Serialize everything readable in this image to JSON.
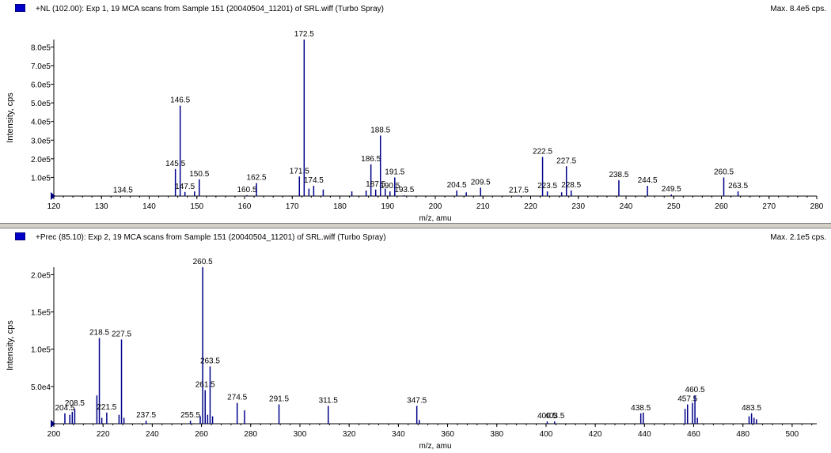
{
  "colors": {
    "peak": "#00008b",
    "axis": "#000000",
    "marker": "#000080"
  },
  "chart_data": [
    {
      "type": "bar",
      "title": "+NL (102.00): Exp 1, 19 MCA scans from Sample 151 (20040504_11201) of SRL.wiff (Turbo Spray)",
      "max_label": "Max. 8.4e5 cps.",
      "xlabel": "m/z, amu",
      "ylabel": "Intensity, cps",
      "xlim": [
        120,
        280
      ],
      "ylim": [
        0,
        840000
      ],
      "xticks": [
        120,
        130,
        140,
        150,
        160,
        170,
        180,
        190,
        200,
        210,
        220,
        230,
        240,
        250,
        260,
        270,
        280
      ],
      "yticks": [
        {
          "value": 100000,
          "label": "1.0e5"
        },
        {
          "value": 200000,
          "label": "2.0e5"
        },
        {
          "value": 300000,
          "label": "3.0e5"
        },
        {
          "value": 400000,
          "label": "4.0e5"
        },
        {
          "value": 500000,
          "label": "5.0e5"
        },
        {
          "value": 600000,
          "label": "6.0e5"
        },
        {
          "value": 700000,
          "label": "7.0e5"
        },
        {
          "value": 800000,
          "label": "8.0e5"
        }
      ],
      "peaks": [
        {
          "x": 134.5,
          "y": 2000,
          "label": "134.5"
        },
        {
          "x": 145.5,
          "y": 145000,
          "label": "145.5"
        },
        {
          "x": 146.5,
          "y": 485000,
          "label": "146.5"
        },
        {
          "x": 147.5,
          "y": 22000,
          "label": "147.5"
        },
        {
          "x": 149.5,
          "y": 25000
        },
        {
          "x": 150.5,
          "y": 90000,
          "label": "150.5"
        },
        {
          "x": 160.5,
          "y": 5000,
          "label": "160.5"
        },
        {
          "x": 162.5,
          "y": 70000,
          "label": "162.5"
        },
        {
          "x": 171.5,
          "y": 105000,
          "label": "171.5"
        },
        {
          "x": 172.5,
          "y": 840000,
          "label": "172.5"
        },
        {
          "x": 173.5,
          "y": 40000
        },
        {
          "x": 174.5,
          "y": 55000,
          "label": "174.5"
        },
        {
          "x": 176.5,
          "y": 35000
        },
        {
          "x": 182.5,
          "y": 25000
        },
        {
          "x": 185.5,
          "y": 30000
        },
        {
          "x": 186.5,
          "y": 170000,
          "label": "186.5"
        },
        {
          "x": 187.5,
          "y": 35000,
          "label": "187.5"
        },
        {
          "x": 188.5,
          "y": 325000,
          "label": "188.5"
        },
        {
          "x": 189.5,
          "y": 40000
        },
        {
          "x": 190.5,
          "y": 25000,
          "label": "190.5"
        },
        {
          "x": 191.5,
          "y": 100000,
          "label": "191.5"
        },
        {
          "x": 193.5,
          "y": 4000,
          "label": "193.5"
        },
        {
          "x": 204.5,
          "y": 30000,
          "label": "204.5"
        },
        {
          "x": 206.5,
          "y": 20000
        },
        {
          "x": 209.5,
          "y": 45000,
          "label": "209.5"
        },
        {
          "x": 217.5,
          "y": 3000,
          "label": "217.5"
        },
        {
          "x": 222.5,
          "y": 210000,
          "label": "222.5"
        },
        {
          "x": 223.5,
          "y": 25000,
          "label": "223.5"
        },
        {
          "x": 226.5,
          "y": 20000
        },
        {
          "x": 227.5,
          "y": 160000,
          "label": "227.5"
        },
        {
          "x": 228.5,
          "y": 30000,
          "label": "228.5"
        },
        {
          "x": 238.5,
          "y": 85000,
          "label": "238.5"
        },
        {
          "x": 244.5,
          "y": 55000,
          "label": "244.5"
        },
        {
          "x": 249.5,
          "y": 8000,
          "label": "249.5"
        },
        {
          "x": 260.5,
          "y": 100000,
          "label": "260.5"
        },
        {
          "x": 263.5,
          "y": 25000,
          "label": "263.5"
        }
      ]
    },
    {
      "type": "bar",
      "title": "+Prec (85.10): Exp 2, 19 MCA scans from Sample 151 (20040504_11201) of SRL.wiff (Turbo Spray)",
      "max_label": "Max. 2.1e5 cps.",
      "xlabel": "m/z, amu",
      "ylabel": "Intensity, cps",
      "xlim": [
        200,
        510
      ],
      "ylim": [
        0,
        210000
      ],
      "xticks": [
        200,
        220,
        240,
        260,
        280,
        300,
        320,
        340,
        360,
        380,
        400,
        420,
        440,
        460,
        480,
        500
      ],
      "yticks": [
        {
          "value": 50000,
          "label": "5.0e4"
        },
        {
          "value": 100000,
          "label": "1.0e5"
        },
        {
          "value": 150000,
          "label": "1.5e5"
        },
        {
          "value": 200000,
          "label": "2.0e5"
        }
      ],
      "peaks": [
        {
          "x": 204.5,
          "y": 14000,
          "label": "204.5"
        },
        {
          "x": 206.5,
          "y": 12000
        },
        {
          "x": 207.5,
          "y": 16000
        },
        {
          "x": 208.5,
          "y": 20000,
          "label": "208.5"
        },
        {
          "x": 217.5,
          "y": 38000
        },
        {
          "x": 218.5,
          "y": 115000,
          "label": "218.5"
        },
        {
          "x": 219.5,
          "y": 8000
        },
        {
          "x": 221.5,
          "y": 15000,
          "label": "221.5"
        },
        {
          "x": 226.5,
          "y": 12000
        },
        {
          "x": 227.5,
          "y": 113000,
          "label": "227.5"
        },
        {
          "x": 228.5,
          "y": 8000
        },
        {
          "x": 237.5,
          "y": 4000,
          "label": "237.5"
        },
        {
          "x": 255.5,
          "y": 4000,
          "label": "255.5"
        },
        {
          "x": 259.5,
          "y": 10000
        },
        {
          "x": 260.5,
          "y": 210000,
          "label": "260.5"
        },
        {
          "x": 261.5,
          "y": 45000,
          "label": "261.5"
        },
        {
          "x": 262.5,
          "y": 12000
        },
        {
          "x": 263.5,
          "y": 77000,
          "label": "263.5"
        },
        {
          "x": 264.5,
          "y": 10000
        },
        {
          "x": 274.5,
          "y": 28000,
          "label": "274.5"
        },
        {
          "x": 277.5,
          "y": 18000
        },
        {
          "x": 291.5,
          "y": 26000,
          "label": "291.5"
        },
        {
          "x": 311.5,
          "y": 24000,
          "label": "311.5"
        },
        {
          "x": 347.5,
          "y": 24000,
          "label": "347.5"
        },
        {
          "x": 348.5,
          "y": 5000
        },
        {
          "x": 400.5,
          "y": 3000,
          "label": "400.5"
        },
        {
          "x": 403.5,
          "y": 3000,
          "label": "403.5"
        },
        {
          "x": 438.5,
          "y": 14000,
          "label": "438.5"
        },
        {
          "x": 439.5,
          "y": 15000
        },
        {
          "x": 456.5,
          "y": 20000
        },
        {
          "x": 457.5,
          "y": 26000,
          "label": "457.5"
        },
        {
          "x": 459.5,
          "y": 28000
        },
        {
          "x": 460.5,
          "y": 38000,
          "label": "460.5"
        },
        {
          "x": 461.5,
          "y": 8000
        },
        {
          "x": 482.5,
          "y": 10000
        },
        {
          "x": 483.5,
          "y": 14000,
          "label": "483.5"
        },
        {
          "x": 484.5,
          "y": 8000
        },
        {
          "x": 485.5,
          "y": 6000
        }
      ]
    }
  ]
}
